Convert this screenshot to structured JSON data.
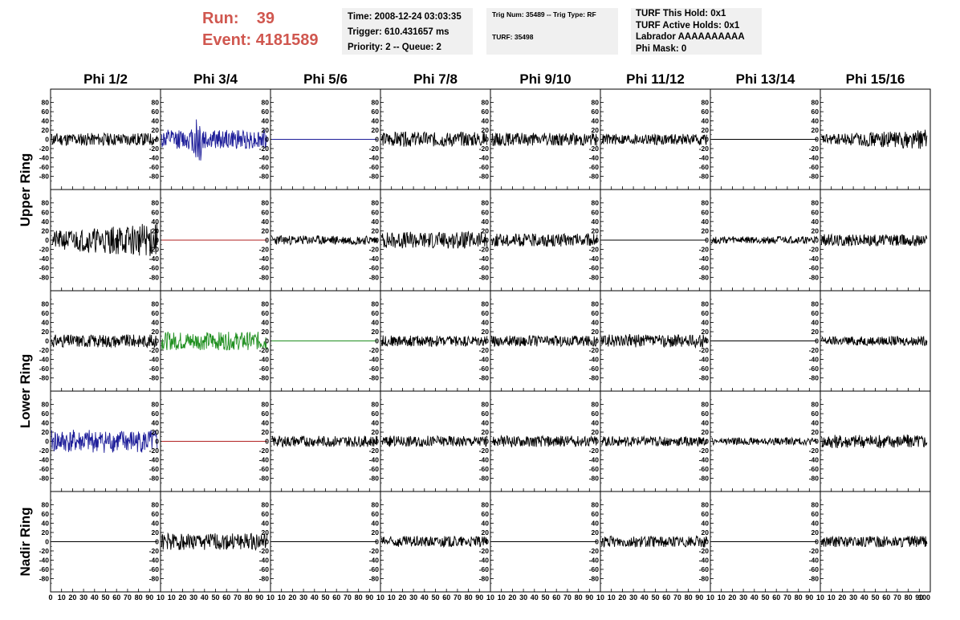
{
  "header": {
    "run_label": "Run:",
    "run_value": "39",
    "event_label": "Event:",
    "event_value": "4181589"
  },
  "info_panel": {
    "time": "Time: 2008-12-24 03:03:35",
    "trigger": "Trigger: 610.431657 ms",
    "priority": "Priority: 2 -- Queue: 2"
  },
  "trig_panel": {
    "trig_line": "Trig Num: 35489 -- Trig Type: RF",
    "turf_line": "TURF: 35498"
  },
  "turf_panel": {
    "this_hold": "TURF This Hold: 0x1",
    "active_holds": "TURF Active Holds: 0x1",
    "labrador": "Labrador AAAAAAAAAA",
    "phi_mask": "Phi Mask: 0"
  },
  "colors": {
    "run_text": "#d0574f",
    "panel_bg": "#f0f0f0",
    "trace_black": "#000000",
    "trace_blue": "#1f1f9a",
    "trace_green": "#1f8f1f",
    "trace_red": "#b22222"
  },
  "chart_data": {
    "type": "line",
    "columns": [
      "Phi 1/2",
      "Phi 3/4",
      "Phi 5/6",
      "Phi 7/8",
      "Phi 9/10",
      "Phi 11/12",
      "Phi 13/14",
      "Phi 15/16"
    ],
    "rows": [
      "Upper Ring",
      "Upper Ring",
      "Lower Ring",
      "Lower Ring",
      "Nadir Ring"
    ],
    "row_groups": [
      {
        "label": "Upper Ring",
        "rows": [
          0,
          1
        ]
      },
      {
        "label": "Lower Ring",
        "rows": [
          2,
          3
        ]
      },
      {
        "label": "Nadir Ring",
        "rows": [
          4
        ]
      }
    ],
    "ylim": [
      -95,
      95
    ],
    "xlim": [
      0,
      100
    ],
    "yticks": [
      -80,
      -60,
      -40,
      -20,
      0,
      20,
      40,
      60,
      80
    ],
    "ytick_labels": [
      "-80",
      "-60",
      "-40",
      "-20",
      "0",
      "20",
      "40",
      "60",
      "80"
    ],
    "xticks": [
      0,
      10,
      20,
      30,
      40,
      50,
      60,
      70,
      80,
      90,
      100
    ],
    "xtick_labels_first": [
      "0",
      "10",
      "20",
      "30",
      "40",
      "50",
      "60",
      "70",
      "80",
      "90",
      "10"
    ],
    "xtick_labels_mid": [
      "10",
      "20",
      "30",
      "40",
      "50",
      "60",
      "70",
      "80",
      "90",
      "10"
    ],
    "xtick_labels_last": [
      "10",
      "20",
      "30",
      "40",
      "50",
      "60",
      "70",
      "80",
      "90",
      "100"
    ],
    "traces": [
      [
        {
          "amp": 14,
          "color": "black",
          "seed": 11
        },
        {
          "amp": 38,
          "color": "blue",
          "seed": 12,
          "burst": true
        },
        {
          "amp": 0,
          "color": "blue",
          "seed": 13
        },
        {
          "amp": 16,
          "color": "black",
          "seed": 14
        },
        {
          "amp": 14,
          "color": "black",
          "seed": 15
        },
        {
          "amp": 12,
          "color": "black",
          "seed": 16
        },
        {
          "amp": 0,
          "color": "black",
          "seed": 17
        },
        {
          "amp": 18,
          "color": "black",
          "seed": 18,
          "rising": true
        }
      ],
      [
        {
          "amp": 32,
          "color": "black",
          "seed": 21,
          "rising": true
        },
        {
          "amp": 0,
          "color": "red",
          "seed": 22
        },
        {
          "amp": 10,
          "color": "black",
          "seed": 23
        },
        {
          "amp": 18,
          "color": "black",
          "seed": 24
        },
        {
          "amp": 14,
          "color": "black",
          "seed": 25
        },
        {
          "amp": 0,
          "color": "black",
          "seed": 26
        },
        {
          "amp": 8,
          "color": "black",
          "seed": 27
        },
        {
          "amp": 13,
          "color": "black",
          "seed": 28
        }
      ],
      [
        {
          "amp": 14,
          "color": "black",
          "seed": 31
        },
        {
          "amp": 20,
          "color": "green",
          "seed": 32
        },
        {
          "amp": 0,
          "color": "green",
          "seed": 33
        },
        {
          "amp": 12,
          "color": "black",
          "seed": 34
        },
        {
          "amp": 12,
          "color": "black",
          "seed": 35
        },
        {
          "amp": 14,
          "color": "black",
          "seed": 36
        },
        {
          "amp": 0,
          "color": "black",
          "seed": 37
        },
        {
          "amp": 10,
          "color": "black",
          "seed": 38
        }
      ],
      [
        {
          "amp": 25,
          "color": "blue",
          "seed": 41
        },
        {
          "amp": 0,
          "color": "red",
          "seed": 42
        },
        {
          "amp": 12,
          "color": "black",
          "seed": 43
        },
        {
          "amp": 12,
          "color": "black",
          "seed": 44
        },
        {
          "amp": 12,
          "color": "black",
          "seed": 45
        },
        {
          "amp": 11,
          "color": "black",
          "seed": 46
        },
        {
          "amp": 8,
          "color": "black",
          "seed": 47
        },
        {
          "amp": 15,
          "color": "black",
          "seed": 48
        }
      ],
      [
        {
          "amp": 0,
          "color": "black",
          "seed": 51
        },
        {
          "amp": 18,
          "color": "black",
          "seed": 52
        },
        {
          "amp": 0,
          "color": "black",
          "seed": 53
        },
        {
          "amp": 12,
          "color": "black",
          "seed": 54
        },
        {
          "amp": 0,
          "color": "black",
          "seed": 55
        },
        {
          "amp": 12,
          "color": "black",
          "seed": 56
        },
        {
          "amp": 0,
          "color": "black",
          "seed": 57
        },
        {
          "amp": 12,
          "color": "black",
          "seed": 58
        }
      ]
    ]
  }
}
